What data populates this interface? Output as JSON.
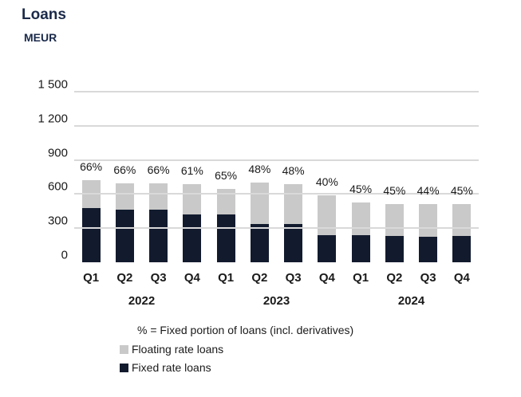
{
  "chart": {
    "title": "Loans",
    "unit": "MEUR"
  },
  "chart_data": {
    "type": "bar",
    "stacked": true,
    "title": "Loans",
    "ylabel": "MEUR",
    "xlabel": "",
    "grid": true,
    "ylim": [
      0,
      1500
    ],
    "yticks": [
      0,
      300,
      600,
      900,
      1200,
      1500
    ],
    "ytick_labels": [
      "0",
      "300",
      "600",
      "900",
      "1 200",
      "1 500"
    ],
    "categories": [
      "Q1",
      "Q2",
      "Q3",
      "Q4",
      "Q1",
      "Q2",
      "Q3",
      "Q4",
      "Q1",
      "Q2",
      "Q3",
      "Q4"
    ],
    "year_groups": [
      {
        "label": "2022",
        "span": 4
      },
      {
        "label": "2023",
        "span": 4
      },
      {
        "label": "2024",
        "span": 4
      }
    ],
    "series": [
      {
        "name": "Fixed rate loans",
        "color": "#121b2e",
        "values": [
          480,
          460,
          460,
          420,
          420,
          335,
          335,
          235,
          235,
          230,
          225,
          230
        ]
      },
      {
        "name": "Floating rate loans",
        "color": "#c9c9c9",
        "values": [
          245,
          235,
          235,
          265,
          225,
          365,
          355,
          355,
          290,
          280,
          285,
          280
        ]
      }
    ],
    "bar_labels": [
      "66%",
      "66%",
      "66%",
      "61%",
      "65%",
      "48%",
      "48%",
      "40%",
      "45%",
      "45%",
      "44%",
      "45%"
    ],
    "legend_position": "bottom-left",
    "legend_note": "% = Fixed portion of loans (incl. derivatives)"
  },
  "legend": {
    "note": "% = Fixed portion of loans (incl. derivatives)",
    "items": [
      {
        "label": "Floating rate loans",
        "color": "#c9c9c9"
      },
      {
        "label": "Fixed rate loans",
        "color": "#121b2e"
      }
    ]
  },
  "colors": {
    "fixed_bar": "#121b2e",
    "floating_bar": "#c9c9c9",
    "gridline": "#d9d9d9",
    "title_text": "#1b2a4a",
    "axis_text": "#1a1a1a"
  }
}
